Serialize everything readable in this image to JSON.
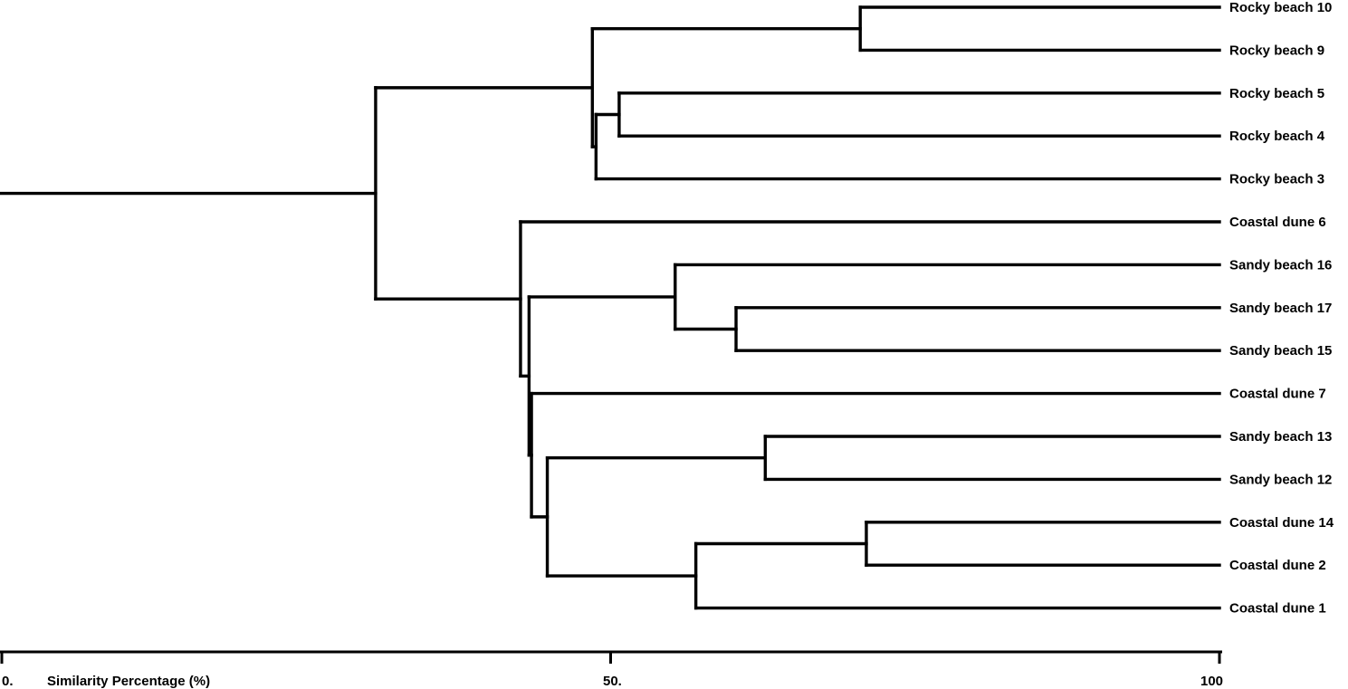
{
  "chart_data": {
    "type": "dendrogram",
    "xlabel": "Similarity Percentage (%)",
    "xlim": [
      0,
      100
    ],
    "xticks": [
      {
        "value": 0,
        "label": "0."
      },
      {
        "value": 50,
        "label": "50."
      },
      {
        "value": 100,
        "label": "100"
      }
    ],
    "leaves": [
      "Rocky beach 10",
      "Rocky beach 9",
      "Rocky beach 5",
      "Rocky beach 4",
      "Rocky beach 3",
      "Coastal dune 6",
      "Sandy beach 16",
      "Sandy beach 17",
      "Sandy beach 15",
      "Coastal dune 7",
      "Sandy beach 13",
      "Sandy beach 12",
      "Coastal dune 14",
      "Coastal dune 2",
      "Coastal dune 1"
    ],
    "merges": [
      {
        "id": "m1",
        "children": [
          "Rocky beach 10",
          "Rocky beach 9"
        ],
        "similarity": 70.5
      },
      {
        "id": "m2",
        "children": [
          "Rocky beach 5",
          "Rocky beach 4"
        ],
        "similarity": 50.7
      },
      {
        "id": "m3",
        "children": [
          "m2",
          "Rocky beach 3"
        ],
        "similarity": 48.8
      },
      {
        "id": "m4",
        "children": [
          "m1",
          "m3"
        ],
        "similarity": 48.5
      },
      {
        "id": "m5",
        "children": [
          "Sandy beach 17",
          "Sandy beach 15"
        ],
        "similarity": 60.3
      },
      {
        "id": "m6",
        "children": [
          "Sandy beach 16",
          "m5"
        ],
        "similarity": 55.3
      },
      {
        "id": "m7",
        "children": [
          "Sandy beach 13",
          "Sandy beach 12"
        ],
        "similarity": 62.7
      },
      {
        "id": "m8",
        "children": [
          "Coastal dune 14",
          "Coastal dune 2"
        ],
        "similarity": 71.0
      },
      {
        "id": "m9",
        "children": [
          "m8",
          "Coastal dune 1"
        ],
        "similarity": 57.0
      },
      {
        "id": "m10",
        "children": [
          "m7",
          "m9"
        ],
        "similarity": 44.8
      },
      {
        "id": "m11",
        "children": [
          "Coastal dune 7",
          "m10"
        ],
        "similarity": 43.5
      },
      {
        "id": "m12",
        "children": [
          "m6",
          "m11"
        ],
        "similarity": 43.3
      },
      {
        "id": "m13",
        "children": [
          "Coastal dune 6",
          "m12"
        ],
        "similarity": 42.6
      },
      {
        "id": "m14",
        "children": [
          "m4",
          "m13"
        ],
        "similarity": 30.7
      }
    ]
  }
}
